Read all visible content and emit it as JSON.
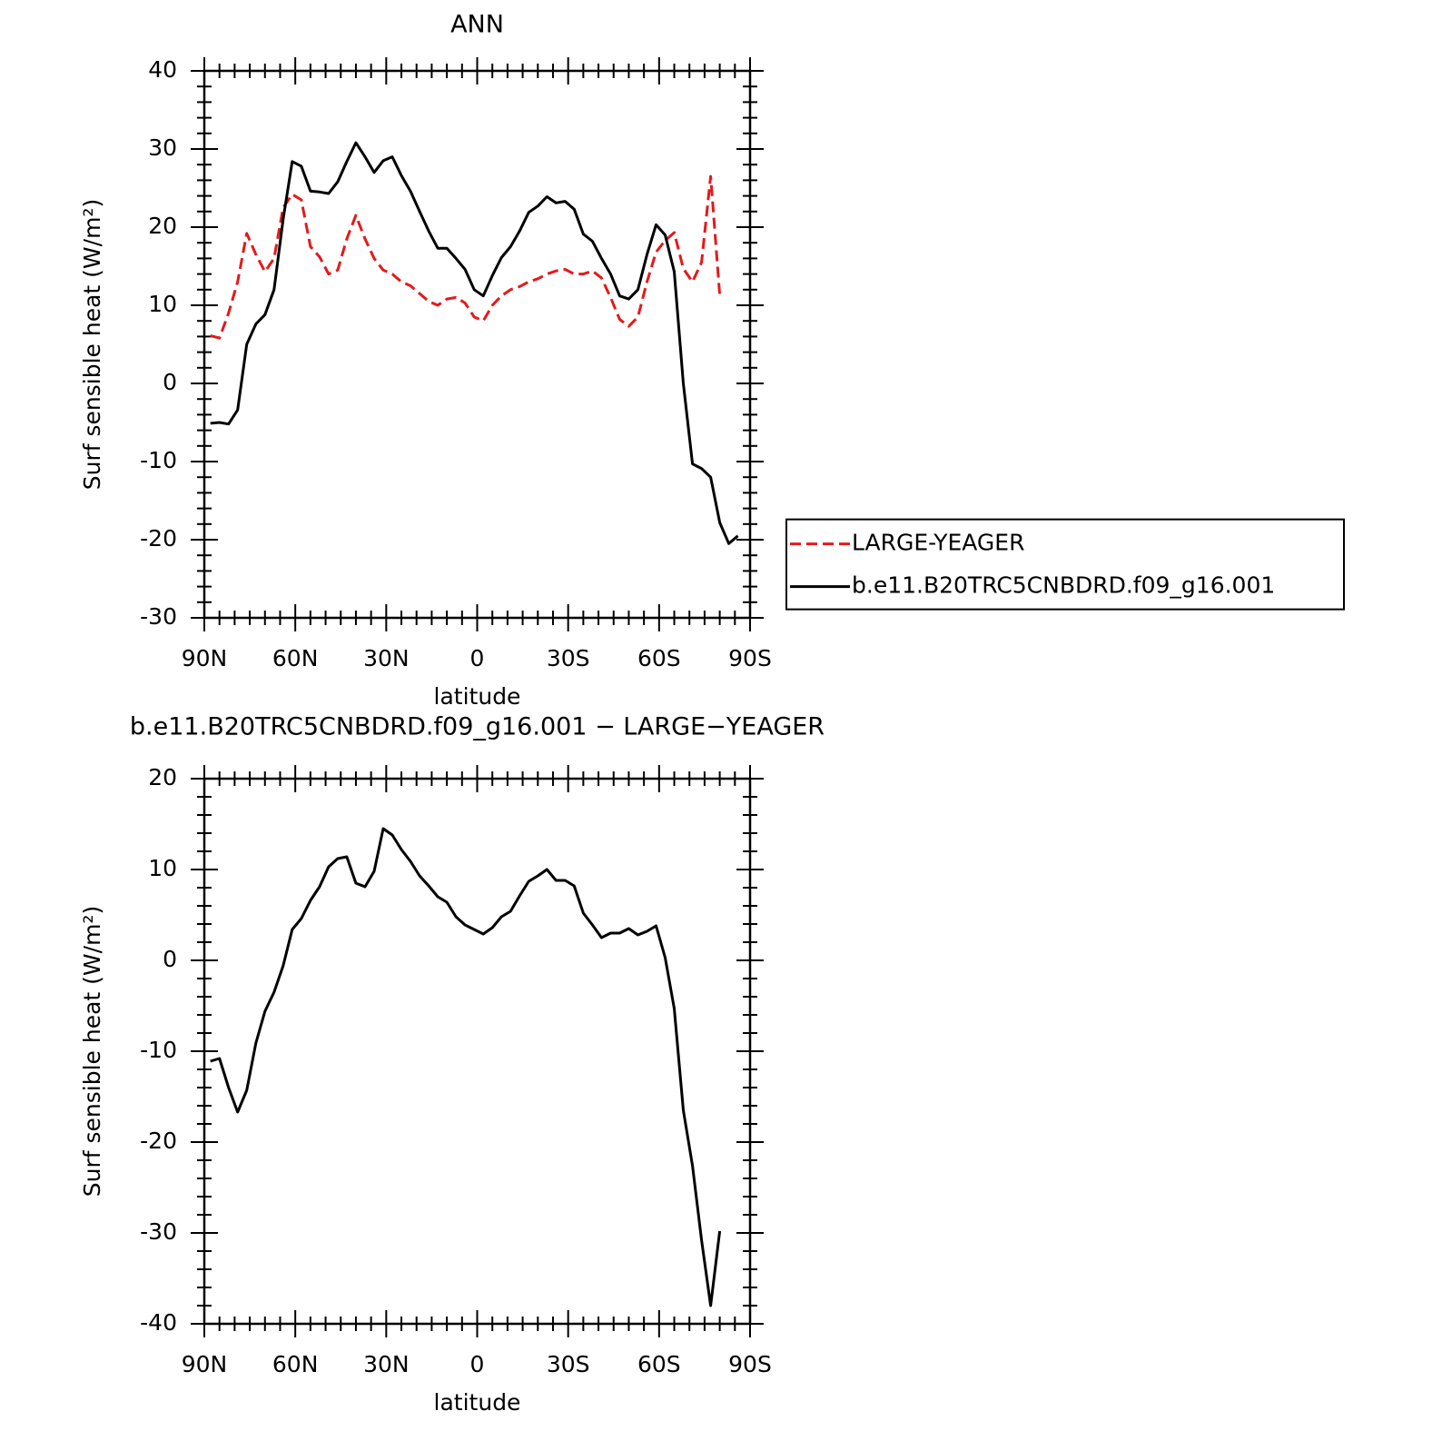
{
  "chart_data": [
    {
      "type": "line",
      "title": "ANN",
      "xlabel": "latitude",
      "ylabel": "Surf sensible heat (W/m²)",
      "x": [
        88,
        85,
        82,
        79,
        76,
        73,
        70,
        67,
        64,
        61,
        58,
        55,
        52,
        49,
        46,
        43,
        40,
        37,
        34,
        31,
        28,
        25,
        22,
        19,
        16,
        13,
        10,
        7,
        4,
        1,
        -2,
        -5,
        -8,
        -11,
        -14,
        -17,
        -20,
        -23,
        -26,
        -29,
        -32,
        -35,
        -38,
        -41,
        -44,
        -47,
        -50,
        -53,
        -56,
        -59,
        -62,
        -65,
        -68,
        -71,
        -74,
        -77,
        -80,
        -83,
        -86,
        -89
      ],
      "xlim": [
        90,
        -90
      ],
      "xticks": [
        {
          "value": 90,
          "label": "90N"
        },
        {
          "value": 60,
          "label": "60N"
        },
        {
          "value": 30,
          "label": "30N"
        },
        0,
        {
          "value": -30,
          "label": "30S"
        },
        {
          "value": -60,
          "label": "60S"
        },
        {
          "value": -90,
          "label": "90S"
        }
      ],
      "ylim": [
        -30,
        40
      ],
      "yticks": [
        -30,
        -20,
        -10,
        0,
        10,
        20,
        30,
        40
      ],
      "legend": "right",
      "series": [
        {
          "name": "LARGE-YEAGER",
          "color": "#e31a1c",
          "linestyle": "dashed",
          "values": [
            6.1,
            5.8,
            9,
            13,
            19.2,
            16.5,
            14.3,
            16,
            22.5,
            24.2,
            23.5,
            17.5,
            16.2,
            14,
            14.5,
            18.5,
            21.5,
            18.5,
            16,
            14.5,
            14,
            13,
            12.5,
            11.5,
            10.5,
            10,
            10.8,
            11,
            10.3,
            8.5,
            8,
            10,
            11.2,
            12,
            12.4,
            13,
            13.4,
            14,
            14.4,
            14.6,
            14,
            14,
            14.4,
            13.5,
            11,
            8.2,
            7.3,
            8.5,
            13,
            16.8,
            18.3,
            19.3,
            14.7,
            13,
            15.5,
            26.5,
            11.3,
            null,
            null,
            null
          ]
        },
        {
          "name": "b.e11.B20TRC5CNBDRD.f09_g16.001",
          "color": "#000000",
          "linestyle": "solid",
          "values": [
            -5.1,
            -5.0,
            -5.2,
            -3.4,
            5.0,
            7.6,
            8.8,
            12,
            21,
            28.4,
            27.8,
            24.6,
            24.5,
            24.3,
            25.8,
            28.4,
            30.8,
            29,
            27,
            28.5,
            29,
            26.6,
            24.6,
            22,
            19.5,
            17.3,
            17.3,
            16,
            14.6,
            12,
            11.2,
            13.8,
            16.1,
            17.5,
            19.5,
            21.9,
            22.7,
            23.9,
            23.1,
            23.3,
            22.3,
            19.1,
            18.2,
            16,
            14,
            11.2,
            10.8,
            12.0,
            16.5,
            20.3,
            19,
            14.3,
            0,
            -10.3,
            -10.9,
            -12,
            -17.8,
            -20.5,
            -19.5,
            null
          ]
        }
      ]
    },
    {
      "type": "line",
      "title": "b.e11.B20TRC5CNBDRD.f09_g16.001 − LARGE−YEAGER",
      "xlabel": "latitude",
      "ylabel": "Surf sensible heat (W/m²)",
      "x": [
        88,
        85,
        82,
        79,
        76,
        73,
        70,
        67,
        64,
        61,
        58,
        55,
        52,
        49,
        46,
        43,
        40,
        37,
        34,
        31,
        28,
        25,
        22,
        19,
        16,
        13,
        10,
        7,
        4,
        1,
        -2,
        -5,
        -8,
        -11,
        -14,
        -17,
        -20,
        -23,
        -26,
        -29,
        -32,
        -35,
        -38,
        -41,
        -44,
        -47,
        -50,
        -53,
        -56,
        -59,
        -62,
        -65,
        -68,
        -71,
        -74,
        -77,
        -80,
        -83,
        -86,
        -89
      ],
      "xlim": [
        90,
        -90
      ],
      "xticks": [
        {
          "value": 90,
          "label": "90N"
        },
        {
          "value": 60,
          "label": "60N"
        },
        {
          "value": 30,
          "label": "30N"
        },
        0,
        {
          "value": -30,
          "label": "30S"
        },
        {
          "value": -60,
          "label": "60S"
        },
        {
          "value": -90,
          "label": "90S"
        }
      ],
      "ylim": [
        -40,
        20
      ],
      "yticks": [
        -40,
        -30,
        -20,
        -10,
        0,
        10,
        20
      ],
      "series": [
        {
          "color": "#000000",
          "linestyle": "solid",
          "values": [
            -11.1,
            -10.8,
            -14,
            -16.7,
            -14.3,
            -9.1,
            -5.6,
            -3.5,
            -0.6,
            3.4,
            4.6,
            6.6,
            8.1,
            10.3,
            11.2,
            11.4,
            8.5,
            8.1,
            9.8,
            14.5,
            13.8,
            12.2,
            10.9,
            9.3,
            8.2,
            7,
            6.4,
            4.8,
            3.9,
            3.4,
            2.9,
            3.6,
            4.8,
            5.4,
            7.1,
            8.7,
            9.3,
            10,
            8.8,
            8.8,
            8.2,
            5.2,
            3.9,
            2.5,
            3,
            3,
            3.5,
            2.8,
            3.2,
            3.8,
            0.3,
            -5.3,
            -16.5,
            -22.6,
            -30.8,
            -38,
            -29.8,
            null,
            null,
            null
          ]
        }
      ]
    }
  ]
}
